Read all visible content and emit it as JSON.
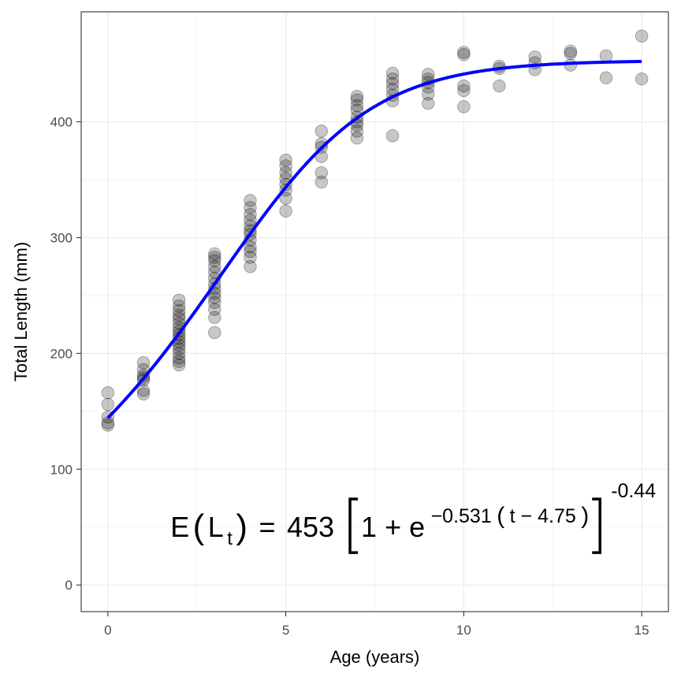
{
  "chart_data": {
    "type": "scatter",
    "xlabel": "Age (years)",
    "ylabel": "Total Length (mm)",
    "xlim": [
      -0.75,
      15.75
    ],
    "ylim": [
      -23,
      495
    ],
    "xticks": [
      0,
      5,
      10,
      15
    ],
    "yticks": [
      0,
      100,
      200,
      300,
      400
    ],
    "grid": true,
    "theme": "bw",
    "point_color": "#000000",
    "point_alpha": 0.22,
    "line_color": "#0000ff",
    "points": [
      [
        0,
        138
      ],
      [
        0,
        140
      ],
      [
        0,
        145
      ],
      [
        0,
        156
      ],
      [
        0,
        166
      ],
      [
        1,
        165
      ],
      [
        1,
        168
      ],
      [
        1,
        177
      ],
      [
        1,
        179
      ],
      [
        1,
        181
      ],
      [
        1,
        186
      ],
      [
        1,
        192
      ],
      [
        2,
        190
      ],
      [
        2,
        193
      ],
      [
        2,
        196
      ],
      [
        2,
        200
      ],
      [
        2,
        204
      ],
      [
        2,
        207
      ],
      [
        2,
        210
      ],
      [
        2,
        213
      ],
      [
        2,
        216
      ],
      [
        2,
        219
      ],
      [
        2,
        222
      ],
      [
        2,
        226
      ],
      [
        2,
        230
      ],
      [
        2,
        233
      ],
      [
        2,
        237
      ],
      [
        2,
        241
      ],
      [
        2,
        246
      ],
      [
        3,
        218
      ],
      [
        3,
        231
      ],
      [
        3,
        238
      ],
      [
        3,
        244
      ],
      [
        3,
        248
      ],
      [
        3,
        252
      ],
      [
        3,
        256
      ],
      [
        3,
        260
      ],
      [
        3,
        265
      ],
      [
        3,
        270
      ],
      [
        3,
        275
      ],
      [
        3,
        280
      ],
      [
        3,
        283
      ],
      [
        3,
        286
      ],
      [
        4,
        275
      ],
      [
        4,
        283
      ],
      [
        4,
        288
      ],
      [
        4,
        292
      ],
      [
        4,
        298
      ],
      [
        4,
        303
      ],
      [
        4,
        306
      ],
      [
        4,
        310
      ],
      [
        4,
        315
      ],
      [
        4,
        320
      ],
      [
        4,
        326
      ],
      [
        4,
        332
      ],
      [
        5,
        323
      ],
      [
        5,
        334
      ],
      [
        5,
        341
      ],
      [
        5,
        346
      ],
      [
        5,
        351
      ],
      [
        5,
        356
      ],
      [
        5,
        362
      ],
      [
        5,
        367
      ],
      [
        6,
        348
      ],
      [
        6,
        356
      ],
      [
        6,
        370
      ],
      [
        6,
        378
      ],
      [
        6,
        381
      ],
      [
        6,
        392
      ],
      [
        7,
        386
      ],
      [
        7,
        392
      ],
      [
        7,
        397
      ],
      [
        7,
        400
      ],
      [
        7,
        404
      ],
      [
        7,
        410
      ],
      [
        7,
        414
      ],
      [
        7,
        419
      ],
      [
        7,
        422
      ],
      [
        8,
        388
      ],
      [
        8,
        418
      ],
      [
        8,
        423
      ],
      [
        8,
        428
      ],
      [
        8,
        433
      ],
      [
        8,
        437
      ],
      [
        8,
        442
      ],
      [
        9,
        416
      ],
      [
        9,
        424
      ],
      [
        9,
        430
      ],
      [
        9,
        434
      ],
      [
        9,
        437
      ],
      [
        9,
        441
      ],
      [
        10,
        413
      ],
      [
        10,
        427
      ],
      [
        10,
        431
      ],
      [
        10,
        458
      ],
      [
        10,
        460
      ],
      [
        11,
        431
      ],
      [
        11,
        446
      ],
      [
        11,
        448
      ],
      [
        12,
        445
      ],
      [
        12,
        451
      ],
      [
        12,
        456
      ],
      [
        13,
        449
      ],
      [
        13,
        459
      ],
      [
        13,
        461
      ],
      [
        14,
        438
      ],
      [
        14,
        457
      ],
      [
        15,
        437
      ],
      [
        15,
        474
      ]
    ],
    "model": {
      "type": "Richards",
      "Linf": 453,
      "k": 0.531,
      "t0": 4.75,
      "b": -0.44,
      "x_range": [
        0,
        15
      ]
    },
    "annotation": {
      "lhs": "E",
      "L": "L",
      "sub": "t",
      "equals": "=",
      "linf": "453",
      "one_plus": "1 + e",
      "exp_k": "−0.531",
      "exp_inner": "t − 4.75",
      "power": "-0.44",
      "anchor_x": 2.2,
      "anchor_y": 45
    }
  }
}
